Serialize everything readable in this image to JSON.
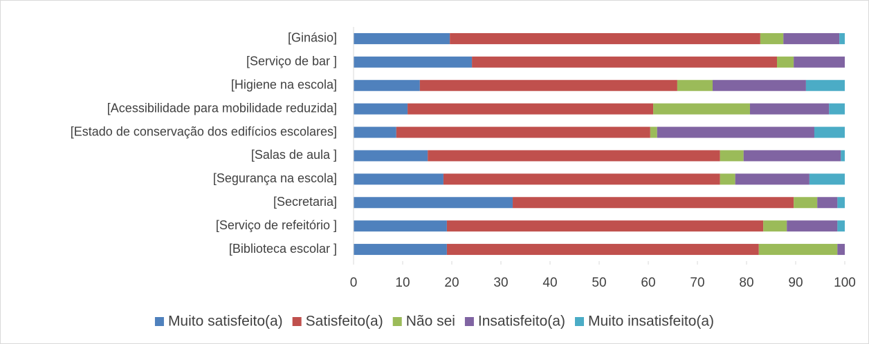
{
  "chart_data": {
    "type": "stacked-barh",
    "categories": [
      "[Ginásio]",
      "[Serviço de bar ]",
      "[Higiene na escola]",
      "[Acessibilidade para mobilidade reduzida]",
      "[Estado de conservação dos edifícios escolares]",
      "[Salas de aula ]",
      "[Segurança na escola]",
      "[Secretaria]",
      "[Serviço de refeitório ]",
      "[Biblioteca escolar ]"
    ],
    "series": [
      {
        "name": "Muito satisfeito(a)",
        "color": "#4f81bd",
        "values": [
          19.6,
          24.1,
          13.5,
          11.0,
          8.7,
          15.1,
          18.3,
          32.4,
          19.0,
          19.0
        ]
      },
      {
        "name": "Satisfeito(a)",
        "color": "#c0504d",
        "values": [
          63.2,
          62.1,
          52.4,
          50.0,
          51.7,
          59.5,
          56.3,
          57.2,
          64.4,
          63.5
        ]
      },
      {
        "name": "Não sei",
        "color": "#9bbb59",
        "values": [
          4.7,
          3.4,
          7.2,
          19.7,
          1.4,
          4.8,
          3.1,
          4.8,
          4.8,
          16.0
        ]
      },
      {
        "name": "Insatisfeito(a)",
        "color": "#8064a2",
        "values": [
          11.4,
          10.4,
          19.0,
          16.1,
          32.0,
          19.8,
          15.1,
          4.1,
          10.3,
          1.5
        ]
      },
      {
        "name": "Muito insatisfeito(a)",
        "color": "#4bacc6",
        "values": [
          1.1,
          0,
          7.9,
          3.2,
          6.2,
          0.8,
          7.2,
          1.5,
          1.5,
          0
        ]
      }
    ],
    "xlim": [
      0,
      100
    ],
    "xticks": [
      0,
      10,
      20,
      30,
      40,
      50,
      60,
      70,
      80,
      90,
      100
    ],
    "grid": false,
    "legend": "bottom"
  }
}
